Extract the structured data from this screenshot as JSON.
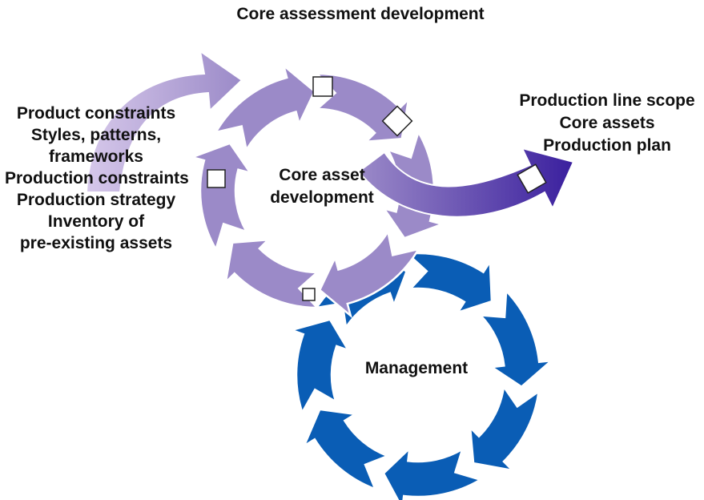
{
  "title": "Core assessment development",
  "inputs": [
    "Product constraints",
    "Styles, patterns,",
    "frameworks",
    "Production constraints",
    "Production strategy",
    "Inventory of",
    "pre-existing assets"
  ],
  "outputs": [
    "Production line scope",
    "Core assets",
    "Production plan"
  ],
  "core_cycle": {
    "label_line1": "Core asset",
    "label_line2": "development",
    "color": "#9b8ac8"
  },
  "management_cycle": {
    "label": "Management",
    "color": "#0a5db5"
  },
  "colors": {
    "input_arrow_start": "#d6c8ea",
    "input_arrow_end": "#9b8ac8",
    "output_arrow_start": "#9b8ac8",
    "output_arrow_end": "#3a1f9e",
    "marker_fill": "#ffffff",
    "marker_stroke": "#222222"
  },
  "markers": [
    "square-marker",
    "diamond-marker",
    "square-marker",
    "square-marker",
    "diamond-marker"
  ]
}
